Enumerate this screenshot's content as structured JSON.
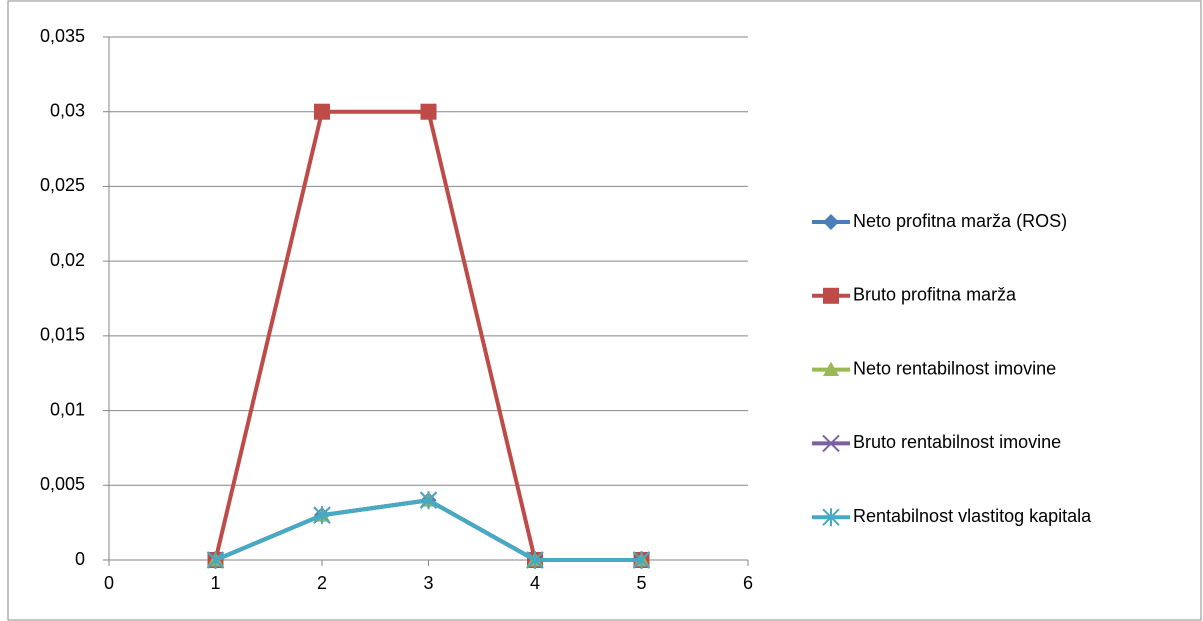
{
  "chart_data": {
    "type": "line",
    "xlim": [
      0,
      6
    ],
    "xticks": [
      0,
      1,
      2,
      3,
      4,
      5,
      6
    ],
    "ylim": [
      0,
      0.035
    ],
    "yticks": [
      0,
      {
        "value": 0.005,
        "label": "0,005"
      },
      {
        "value": 0.01,
        "label": "0,01"
      },
      {
        "value": 0.015,
        "label": "0,015"
      },
      {
        "value": 0.02,
        "label": "0,02"
      },
      {
        "value": 0.025,
        "label": "0,025"
      },
      {
        "value": 0.03,
        "label": "0,03"
      },
      {
        "value": 0.035,
        "label": "0,035"
      }
    ],
    "grid": true,
    "legend": "right",
    "series": [
      {
        "name": "Neto profitna marža (ROS)",
        "color": "#4a7ebb",
        "marker": "diamond",
        "x": [
          1,
          2,
          3,
          4,
          5
        ],
        "values": [
          0,
          0.003,
          0.004,
          0,
          0
        ]
      },
      {
        "name": "Bruto profitna marža",
        "color": "#be4b48",
        "marker": "square",
        "x": [
          1,
          2,
          3,
          4,
          5
        ],
        "values": [
          0,
          0.03,
          0.03,
          0,
          0
        ]
      },
      {
        "name": "Neto rentabilnost imovine",
        "color": "#98b954",
        "marker": "triangle",
        "x": [
          1,
          2,
          3,
          4,
          5
        ],
        "values": [
          0,
          0.003,
          0.004,
          0,
          0
        ]
      },
      {
        "name": "Bruto rentabilnost imovine",
        "color": "#7d60a0",
        "marker": "x",
        "x": [
          1,
          2,
          3,
          4,
          5
        ],
        "values": [
          0,
          0.003,
          0.004,
          0,
          0
        ]
      },
      {
        "name": "Rentabilnost vlastitog kapitala",
        "color": "#46aac5",
        "marker": "star",
        "x": [
          1,
          2,
          3,
          4,
          5
        ],
        "values": [
          0,
          0.003,
          0.004,
          0,
          0
        ]
      }
    ]
  }
}
